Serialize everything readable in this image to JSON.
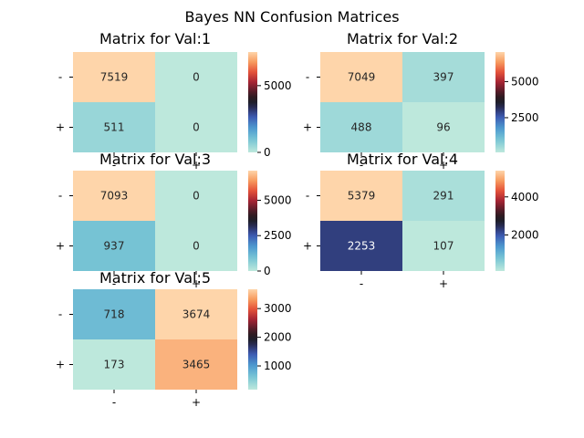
{
  "chart_data": {
    "type": "heatmap",
    "title": "Bayes NN Confusion Matrices",
    "colormap": "icefire",
    "matrices": [
      {
        "title": "Matrix for Val:1",
        "row_labels": [
          "-",
          "+"
        ],
        "col_labels": [
          "-",
          "+"
        ],
        "values": [
          [
            7519,
            0
          ],
          [
            511,
            0
          ]
        ],
        "colorbar_ticks": [
          0,
          5000
        ],
        "colorbar_labels": [
          "0",
          "5000"
        ],
        "color_range": [
          0,
          7519
        ]
      },
      {
        "title": "Matrix for Val:2",
        "row_labels": [
          "-",
          "+"
        ],
        "col_labels": [
          "-",
          "+"
        ],
        "values": [
          [
            7049,
            397
          ],
          [
            488,
            96
          ]
        ],
        "colorbar_ticks": [
          2500,
          5000
        ],
        "colorbar_labels": [
          "2500",
          "5000"
        ],
        "color_range": [
          96,
          7049
        ]
      },
      {
        "title": "Matrix for Val:3",
        "row_labels": [
          "-",
          "+"
        ],
        "col_labels": [
          "-",
          "+"
        ],
        "values": [
          [
            7093,
            0
          ],
          [
            937,
            0
          ]
        ],
        "colorbar_ticks": [
          0,
          2500,
          5000
        ],
        "colorbar_labels": [
          "0",
          "2500",
          "5000"
        ],
        "color_range": [
          0,
          7093
        ]
      },
      {
        "title": "Matrix for Val:4",
        "row_labels": [
          "-",
          "+"
        ],
        "col_labels": [
          "-",
          "+"
        ],
        "values": [
          [
            5379,
            291
          ],
          [
            2253,
            107
          ]
        ],
        "colorbar_ticks": [
          2000,
          4000
        ],
        "colorbar_labels": [
          "2000",
          "4000"
        ],
        "color_range": [
          107,
          5379
        ]
      },
      {
        "title": "Matrix for Val:5",
        "row_labels": [
          "-",
          "+"
        ],
        "col_labels": [
          "-",
          "+"
        ],
        "values": [
          [
            718,
            3674
          ],
          [
            173,
            3465
          ]
        ],
        "colorbar_ticks": [
          1000,
          2000,
          3000
        ],
        "colorbar_labels": [
          "1000",
          "2000",
          "3000"
        ],
        "color_range": [
          173,
          3674
        ]
      }
    ]
  }
}
